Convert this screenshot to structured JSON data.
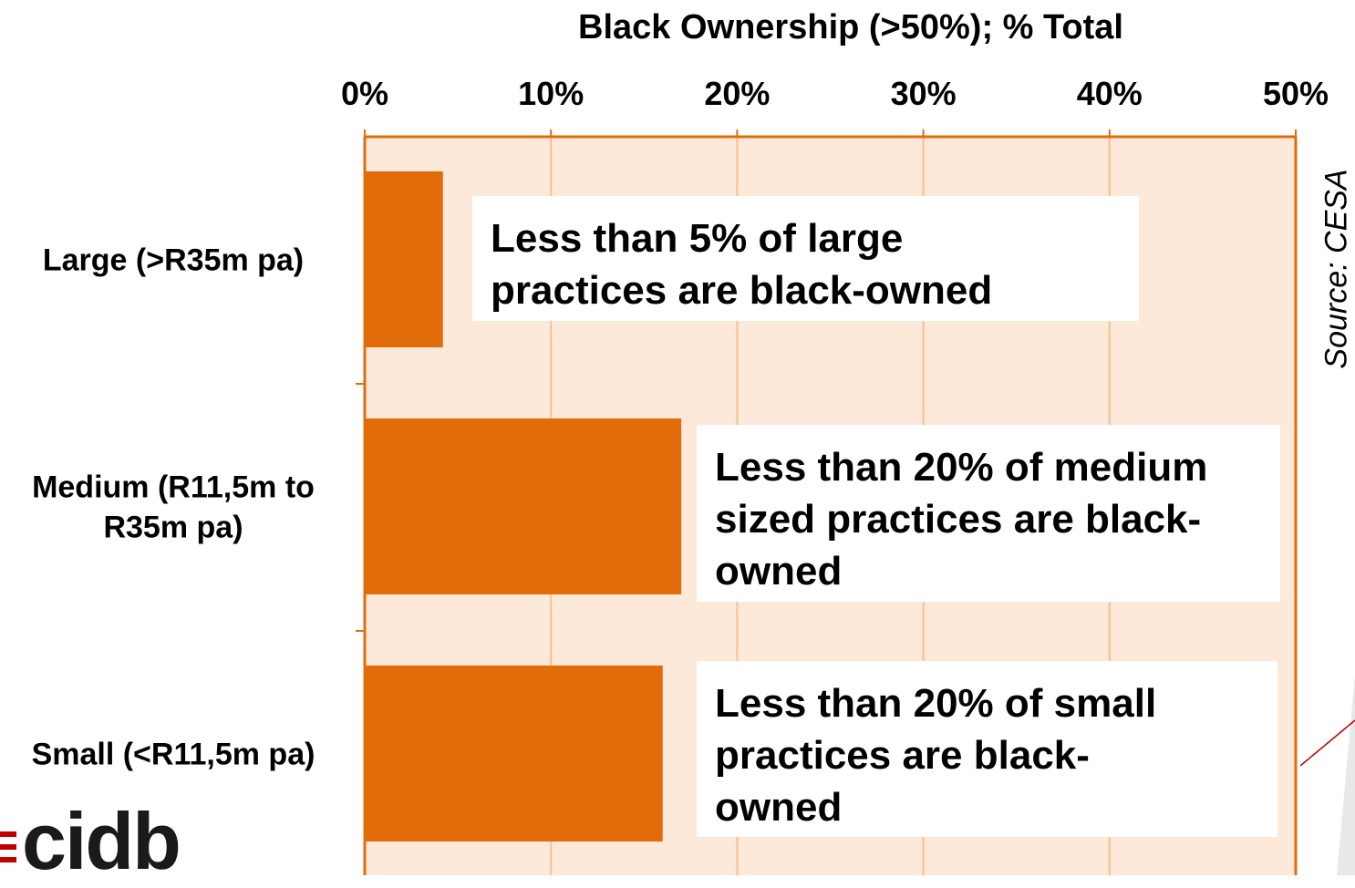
{
  "chart_data": {
    "type": "bar",
    "orientation": "horizontal",
    "title": "Black Ownership (>50%); % Total",
    "categories": [
      [
        "Large (>R35m pa)"
      ],
      [
        "Medium (R11,5m to",
        "R35m pa)"
      ],
      [
        "Small (<R11,5m pa)"
      ]
    ],
    "values": [
      4.2,
      17.0,
      16.0
    ],
    "xlim": [
      0,
      50
    ],
    "ticks": [
      "0%",
      "10%",
      "20%",
      "30%",
      "40%",
      "50%"
    ],
    "tick_values": [
      0,
      10,
      20,
      30,
      40,
      50
    ],
    "grid": true,
    "annotations": [
      [
        "Less than 5% of large",
        "practices are black-owned"
      ],
      [
        "Less than 20% of medium",
        "sized practices are black-",
        "owned"
      ],
      [
        "Less than 20% of small",
        "practices are black-",
        "owned"
      ]
    ],
    "source": "Source: CESA"
  },
  "logo": {
    "text": "cidb"
  },
  "colors": {
    "bar": "#E36C0A",
    "plot_background": "#FDE9D9",
    "gridline": "#F9BF8F",
    "axis": "#E36C0A"
  }
}
